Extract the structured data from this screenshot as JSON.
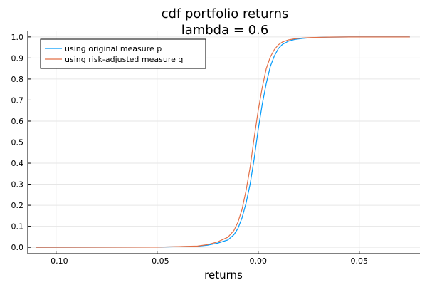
{
  "chart_data": {
    "type": "line",
    "title": "cdf portfolio returns",
    "subtitle": "lambda = 0.6",
    "xlabel": "returns",
    "ylabel": "",
    "xlim": [
      -0.114,
      0.08
    ],
    "ylim": [
      -0.03,
      1.03
    ],
    "x_ticks": [
      -0.1,
      -0.05,
      0.0,
      0.05
    ],
    "x_tick_labels": [
      "−0.10",
      "−0.05",
      "0.00",
      "0.05"
    ],
    "y_ticks": [
      0.0,
      0.1,
      0.2,
      0.3,
      0.4,
      0.5,
      0.6,
      0.7,
      0.8,
      0.9,
      1.0
    ],
    "y_tick_labels": [
      "0.0",
      "0.1",
      "0.2",
      "0.3",
      "0.4",
      "0.5",
      "0.6",
      "0.7",
      "0.8",
      "0.9",
      "1.0"
    ],
    "grid": true,
    "legend_position": "top-left",
    "series": [
      {
        "name": "using original measure p",
        "color": "#009AFA",
        "x": [
          -0.11,
          -0.05,
          -0.03,
          -0.025,
          -0.02,
          -0.015,
          -0.012,
          -0.01,
          -0.008,
          -0.006,
          -0.004,
          -0.002,
          0.0,
          0.002,
          0.004,
          0.006,
          0.008,
          0.01,
          0.012,
          0.015,
          0.018,
          0.022,
          0.026,
          0.03,
          0.035,
          0.045,
          0.075
        ],
        "y": [
          0.0,
          0.001,
          0.005,
          0.01,
          0.02,
          0.035,
          0.06,
          0.09,
          0.14,
          0.21,
          0.3,
          0.42,
          0.56,
          0.68,
          0.78,
          0.86,
          0.91,
          0.945,
          0.965,
          0.98,
          0.988,
          0.993,
          0.996,
          0.998,
          0.999,
          1.0,
          1.0
        ]
      },
      {
        "name": "using risk-adjusted measure q",
        "color": "#E26F46",
        "x": [
          -0.11,
          -0.05,
          -0.03,
          -0.025,
          -0.02,
          -0.015,
          -0.012,
          -0.01,
          -0.008,
          -0.006,
          -0.004,
          -0.002,
          0.0,
          0.002,
          0.004,
          0.006,
          0.008,
          0.01,
          0.012,
          0.015,
          0.018,
          0.022,
          0.026,
          0.03,
          0.035,
          0.045,
          0.075
        ],
        "y": [
          0.0,
          0.001,
          0.006,
          0.013,
          0.026,
          0.048,
          0.08,
          0.12,
          0.18,
          0.27,
          0.38,
          0.52,
          0.65,
          0.76,
          0.85,
          0.905,
          0.94,
          0.963,
          0.976,
          0.986,
          0.991,
          0.995,
          0.997,
          0.998,
          0.999,
          1.0,
          1.0
        ]
      }
    ]
  }
}
